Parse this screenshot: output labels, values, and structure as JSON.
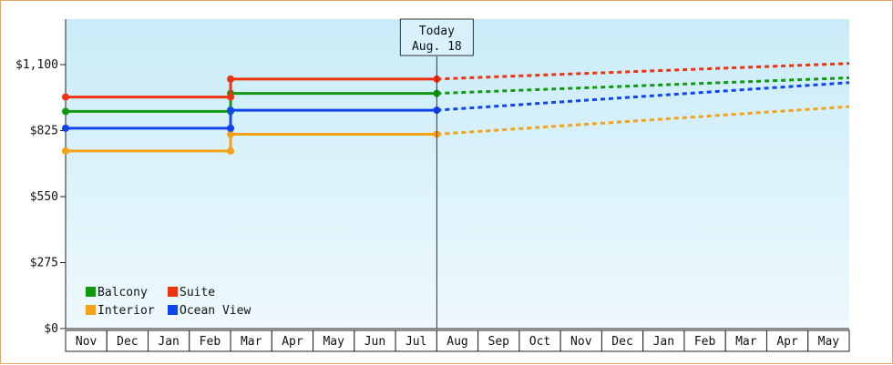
{
  "chart_data": {
    "type": "line",
    "step": true,
    "y_ticks": [
      "$0",
      "$275",
      "$550",
      "$825",
      "$1,100"
    ],
    "y_tick_values": [
      0,
      275,
      550,
      825,
      1100
    ],
    "ylim": [
      0,
      1100
    ],
    "x_categories": [
      "Nov",
      "Dec",
      "Jan",
      "Feb",
      "Mar",
      "Apr",
      "May",
      "Jun",
      "Jul",
      "Aug",
      "Sep",
      "Oct",
      "Nov",
      "Dec",
      "Jan",
      "Feb",
      "Mar",
      "Apr",
      "May"
    ],
    "today_marker": {
      "line1": "Today",
      "line2": "Aug. 18",
      "x_index": 9
    },
    "grid": false,
    "legend": {
      "placement": "bottom-left",
      "items": [
        {
          "name": "Balcony",
          "color": "#119911"
        },
        {
          "name": "Suite",
          "color": "#ee3311"
        },
        {
          "name": "Interior",
          "color": "#f5a21a"
        },
        {
          "name": "Ocean View",
          "color": "#1144ee"
        }
      ]
    },
    "series": [
      {
        "name": "Balcony",
        "color": "#119911",
        "actual": [
          [
            0,
            905
          ],
          [
            4,
            905
          ],
          [
            4,
            980
          ],
          [
            9,
            980
          ]
        ],
        "projected": [
          [
            9,
            980
          ],
          [
            19,
            1045
          ]
        ]
      },
      {
        "name": "Suite",
        "color": "#ee3311",
        "actual": [
          [
            0,
            965
          ],
          [
            4,
            965
          ],
          [
            4,
            1040
          ],
          [
            9,
            1040
          ]
        ],
        "projected": [
          [
            9,
            1040
          ],
          [
            19,
            1105
          ]
        ]
      },
      {
        "name": "Interior",
        "color": "#f5a21a",
        "actual": [
          [
            0,
            740
          ],
          [
            4,
            740
          ],
          [
            4,
            810
          ],
          [
            9,
            810
          ]
        ],
        "projected": [
          [
            9,
            810
          ],
          [
            19,
            925
          ]
        ]
      },
      {
        "name": "Ocean View",
        "color": "#1144ee",
        "actual": [
          [
            0,
            835
          ],
          [
            4,
            835
          ],
          [
            4,
            910
          ],
          [
            9,
            910
          ]
        ],
        "projected": [
          [
            9,
            910
          ],
          [
            19,
            1025
          ]
        ]
      }
    ]
  }
}
